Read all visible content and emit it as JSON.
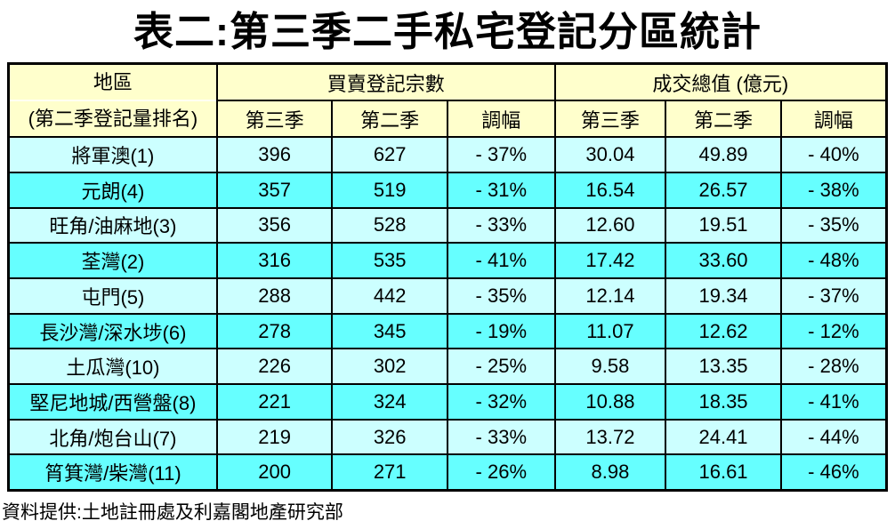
{
  "page": {
    "title": "表二:第三季二手私宅登記分區統計",
    "source_note": "資料提供:土地註冊處及利嘉閣地產研究部"
  },
  "colors": {
    "header_bg": "#FFFFCC",
    "row_light_bg": "#CCFFFF",
    "row_dark_bg": "#66FFFF",
    "border": "#000000",
    "text": "#000000"
  },
  "table": {
    "header": {
      "district_title": "地區",
      "district_subtitle": "(第二季登記量排名)",
      "group_sales": "買賣登記宗數",
      "group_value": "成交總值 (億元)",
      "subheaders": [
        "第三季",
        "第二季",
        "調幅",
        "第三季",
        "第二季",
        "調幅"
      ]
    },
    "rows": [
      {
        "district": "將軍澳(1)",
        "cells": [
          "396",
          "627",
          "- 37%",
          "30.04",
          "49.89",
          "- 40%"
        ]
      },
      {
        "district": "元朗(4)",
        "cells": [
          "357",
          "519",
          "- 31%",
          "16.54",
          "26.57",
          "- 38%"
        ]
      },
      {
        "district": "旺角/油麻地(3)",
        "cells": [
          "356",
          "528",
          "- 33%",
          "12.60",
          "19.51",
          "- 35%"
        ]
      },
      {
        "district": "荃灣(2)",
        "cells": [
          "316",
          "535",
          "- 41%",
          "17.42",
          "33.60",
          "- 48%"
        ]
      },
      {
        "district": "屯門(5)",
        "cells": [
          "288",
          "442",
          "- 35%",
          "12.14",
          "19.34",
          "- 37%"
        ]
      },
      {
        "district": "長沙灣/深水埗(6)",
        "cells": [
          "278",
          "345",
          "- 19%",
          "11.07",
          "12.62",
          "- 12%"
        ]
      },
      {
        "district": "土瓜灣(10)",
        "cells": [
          "226",
          "302",
          "- 25%",
          "9.58",
          "13.35",
          "- 28%"
        ]
      },
      {
        "district": "堅尼地城/西營盤(8)",
        "cells": [
          "221",
          "324",
          "- 32%",
          "10.88",
          "18.35",
          "- 41%"
        ]
      },
      {
        "district": "北角/炮台山(7)",
        "cells": [
          "219",
          "326",
          "- 33%",
          "13.72",
          "24.41",
          "- 44%"
        ]
      },
      {
        "district": "筲箕灣/柴灣(11)",
        "cells": [
          "200",
          "271",
          "- 26%",
          "8.98",
          "16.61",
          "- 46%"
        ]
      }
    ]
  },
  "chart_data": {
    "type": "table",
    "title": "表二:第三季二手私宅登記分區統計",
    "columns": [
      "地區 (第二季登記量排名)",
      "買賣登記宗數 第三季",
      "買賣登記宗數 第二季",
      "買賣登記宗數 調幅",
      "成交總值(億元) 第三季",
      "成交總值(億元) 第二季",
      "成交總值(億元) 調幅"
    ],
    "rows": [
      [
        "將軍澳(1)",
        396,
        627,
        "-37%",
        30.04,
        49.89,
        "-40%"
      ],
      [
        "元朗(4)",
        357,
        519,
        "-31%",
        16.54,
        26.57,
        "-38%"
      ],
      [
        "旺角/油麻地(3)",
        356,
        528,
        "-33%",
        12.6,
        19.51,
        "-35%"
      ],
      [
        "荃灣(2)",
        316,
        535,
        "-41%",
        17.42,
        33.6,
        "-48%"
      ],
      [
        "屯門(5)",
        288,
        442,
        "-35%",
        12.14,
        19.34,
        "-37%"
      ],
      [
        "長沙灣/深水埗(6)",
        278,
        345,
        "-19%",
        11.07,
        12.62,
        "-12%"
      ],
      [
        "土瓜灣(10)",
        226,
        302,
        "-25%",
        9.58,
        13.35,
        "-28%"
      ],
      [
        "堅尼地城/西營盤(8)",
        221,
        324,
        "-32%",
        10.88,
        18.35,
        "-41%"
      ],
      [
        "北角/炮台山(7)",
        219,
        326,
        "-33%",
        13.72,
        24.41,
        "-44%"
      ],
      [
        "筲箕灣/柴灣(11)",
        200,
        271,
        "-26%",
        8.98,
        16.61,
        "-46%"
      ]
    ],
    "source": "資料提供:土地註冊處及利嘉閣地產研究部"
  }
}
